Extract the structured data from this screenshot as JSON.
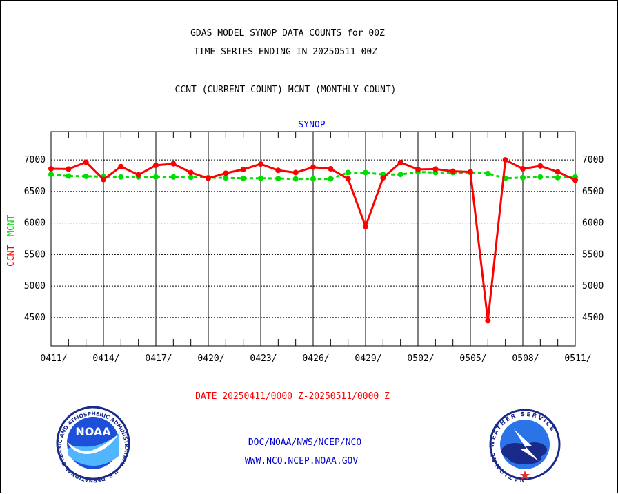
{
  "header": {
    "title_line1": "GDAS MODEL SYNOP DATA COUNTS for 00Z",
    "title_line2": "TIME SERIES ENDING IN 20250511 00Z",
    "subtitle": "CCNT (CURRENT COUNT) MCNT (MONTHLY COUNT)"
  },
  "footer": {
    "date_range": "DATE 20250411/0000 Z-20250511/0000 Z",
    "org_path": "DOC/NOAA/NWS/NCEP/NCO",
    "website": "WWW.NCO.NCEP.NOAA.GOV"
  },
  "logos": {
    "noaa_center": "NOAA",
    "noaa_ring_text": "NATIONAL OCEANIC AND ATMOSPHERIC ADMINISTRATION · U.S. DEPARTMENT OF COMMERCE ·",
    "nws_ring_text": "NATIONAL WEATHER SERVICE"
  },
  "colors": {
    "ccnt": "#ff0000",
    "mcnt": "#00dd00",
    "plot_title": "#0000ff",
    "date_text": "#ff0000",
    "footer_text": "#0000cc",
    "grid": "#000000"
  },
  "chart_data": {
    "type": "line",
    "title": "SYNOP",
    "ylabel_ccnt": "CCNT",
    "ylabel_mcnt": "MCNT",
    "ylim": [
      4050,
      7450
    ],
    "yticks": [
      4500,
      5000,
      5500,
      6000,
      6500,
      7000
    ],
    "ytick_labels": [
      "4500",
      "5000",
      "5500",
      "6000",
      "6500",
      "7000"
    ],
    "xtick_labels": [
      "0411/",
      "0414/",
      "0417/",
      "0420/",
      "0423/",
      "0426/",
      "0429/",
      "0502/",
      "0505/",
      "0508/",
      "0511/"
    ],
    "x": [
      "0411",
      "0412",
      "0413",
      "0414",
      "0415",
      "0416",
      "0417",
      "0418",
      "0419",
      "0420",
      "0421",
      "0422",
      "0423",
      "0424",
      "0425",
      "0426",
      "0427",
      "0428",
      "0429",
      "0430",
      "0501",
      "0502",
      "0503",
      "0504",
      "0505",
      "0506",
      "0507",
      "0508",
      "0509",
      "0510",
      "0511"
    ],
    "grid": true,
    "series": [
      {
        "name": "CCNT",
        "values": [
          6860,
          6855,
          6965,
          6690,
          6895,
          6765,
          6915,
          6940,
          6800,
          6710,
          6790,
          6850,
          6935,
          6835,
          6800,
          6885,
          6860,
          6700,
          5945,
          6715,
          6960,
          6850,
          6855,
          6820,
          6810,
          4450,
          7000,
          6860,
          6905,
          6810,
          6680
        ]
      },
      {
        "name": "MCNT",
        "values": [
          6770,
          6745,
          6740,
          6735,
          6730,
          6730,
          6730,
          6730,
          6725,
          6720,
          6715,
          6710,
          6710,
          6705,
          6700,
          6700,
          6700,
          6800,
          6800,
          6770,
          6770,
          6810,
          6800,
          6800,
          6800,
          6785,
          6710,
          6720,
          6730,
          6720,
          6730
        ]
      }
    ]
  }
}
